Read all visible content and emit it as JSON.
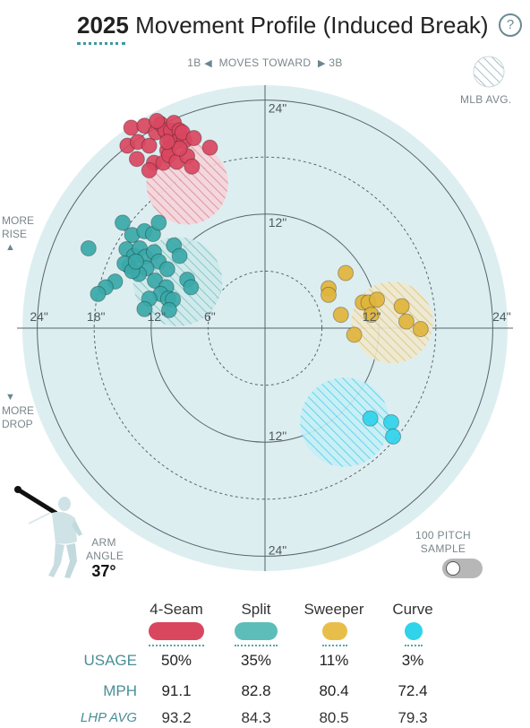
{
  "header": {
    "year": "2025",
    "title": "Movement Profile (Induced Break)",
    "help_icon": "?"
  },
  "direction": {
    "left": "1B",
    "middle": "MOVES TOWARD",
    "right": "3B"
  },
  "side_labels": {
    "rise_1": "MORE",
    "rise_2": "RISE",
    "drop_1": "MORE",
    "drop_2": "DROP"
  },
  "legend": {
    "mlb_avg": "MLB AVG."
  },
  "sample_toggle": {
    "label_1": "100 PITCH",
    "label_2": "SAMPLE",
    "on": false
  },
  "arm_angle": {
    "label_1": "ARM",
    "label_2": "ANGLE",
    "value": "37°"
  },
  "colors": {
    "background_disc": "#ddeef1",
    "axis": "#58646b",
    "four_seam": "#d9475f",
    "split": "#3aa8a8",
    "sweeper": "#e0b43c",
    "curve": "#2fd3ea"
  },
  "chart_data": {
    "type": "scatter",
    "xlim": [
      -24,
      24
    ],
    "ylim": [
      -24,
      24
    ],
    "rings": [
      6,
      12,
      18,
      24
    ],
    "tick_labels": {
      "left": [
        "24\"",
        "18\"",
        "12\"",
        "6\""
      ],
      "right": [
        "12\"",
        "24\""
      ],
      "top": [
        "24\"",
        "12\""
      ],
      "bottom": [
        "12\"",
        "24\""
      ]
    },
    "series": [
      {
        "name": "4-Seam",
        "color": "#d9475f",
        "avg": {
          "x": -8.2,
          "y": 15.2,
          "r": 4.3
        },
        "points": [
          [
            -14.1,
            21.1
          ],
          [
            -14.5,
            19.2
          ],
          [
            -13.4,
            19.6
          ],
          [
            -12.7,
            21.3
          ],
          [
            -12.2,
            19.2
          ],
          [
            -11.5,
            20.6
          ],
          [
            -11.0,
            21.5
          ],
          [
            -10.5,
            20.8
          ],
          [
            -10.0,
            19.8
          ],
          [
            -10.3,
            18.7
          ],
          [
            -11.7,
            17.4
          ],
          [
            -13.5,
            17.8
          ],
          [
            -12.2,
            16.6
          ],
          [
            -10.7,
            17.4
          ],
          [
            -9.9,
            20.8
          ],
          [
            -9.6,
            21.6
          ],
          [
            -9.0,
            20.8
          ],
          [
            -9.3,
            19.6
          ],
          [
            -10.1,
            18.2
          ],
          [
            -9.3,
            17.5
          ],
          [
            -8.2,
            18.1
          ],
          [
            -8.5,
            19.7
          ],
          [
            -8.7,
            20.6
          ],
          [
            -7.5,
            20.0
          ],
          [
            -9.0,
            18.9
          ],
          [
            -5.8,
            19.0
          ],
          [
            -7.7,
            17.0
          ],
          [
            -11.4,
            21.8
          ],
          [
            -10.3,
            19.6
          ]
        ]
      },
      {
        "name": "Split",
        "color": "#3aa8a8",
        "avg": {
          "x": -9.2,
          "y": 4.9,
          "r": 4.7
        },
        "points": [
          [
            -18.6,
            8.4
          ],
          [
            -15.0,
            11.1
          ],
          [
            -14.0,
            9.8
          ],
          [
            -14.6,
            8.3
          ],
          [
            -13.8,
            7.6
          ],
          [
            -14.3,
            6.5
          ],
          [
            -15.8,
            4.9
          ],
          [
            -16.8,
            4.3
          ],
          [
            -17.6,
            3.6
          ],
          [
            -14.8,
            6.8
          ],
          [
            -13.2,
            8.4
          ],
          [
            -12.7,
            10.2
          ],
          [
            -11.8,
            9.9
          ],
          [
            -11.2,
            11.1
          ],
          [
            -12.6,
            7.5
          ],
          [
            -11.7,
            8.0
          ],
          [
            -11.2,
            7.0
          ],
          [
            -12.5,
            6.3
          ],
          [
            -13.3,
            5.7
          ],
          [
            -10.3,
            6.2
          ],
          [
            -9.6,
            8.7
          ],
          [
            -9.0,
            7.6
          ],
          [
            -8.2,
            5.1
          ],
          [
            -11.6,
            5.0
          ],
          [
            -10.4,
            4.3
          ],
          [
            -11.0,
            3.6
          ],
          [
            -12.2,
            3.1
          ],
          [
            -12.7,
            2.0
          ],
          [
            -10.2,
            3.1
          ],
          [
            -9.7,
            3.0
          ],
          [
            -7.8,
            4.3
          ],
          [
            -10.1,
            1.9
          ],
          [
            -14.0,
            6.0
          ],
          [
            -13.6,
            7.0
          ]
        ]
      },
      {
        "name": "Sweeper",
        "color": "#e0b43c",
        "avg": {
          "x": 13.4,
          "y": 0.6,
          "r": 4.3
        },
        "points": [
          [
            8.5,
            5.8
          ],
          [
            6.7,
            4.2
          ],
          [
            6.7,
            3.5
          ],
          [
            10.3,
            2.7
          ],
          [
            10.9,
            2.7
          ],
          [
            11.8,
            3.0
          ],
          [
            14.4,
            2.3
          ],
          [
            8.0,
            1.4
          ],
          [
            11.2,
            1.4
          ],
          [
            14.9,
            0.7
          ],
          [
            16.4,
            -0.1
          ],
          [
            9.4,
            -0.7
          ]
        ]
      },
      {
        "name": "Curve",
        "color": "#2fd3ea",
        "avg": {
          "x": 8.4,
          "y": -9.9,
          "r": 4.7
        },
        "points": [
          [
            11.1,
            -9.5
          ],
          [
            13.3,
            -9.9
          ],
          [
            13.5,
            -11.4
          ]
        ]
      }
    ]
  },
  "table": {
    "pitches": [
      {
        "name": "4-Seam",
        "color": "#d9475f",
        "usage": "50%",
        "mph": "91.1",
        "lhp_avg": "93.2"
      },
      {
        "name": "Split",
        "color": "#5dbdb8",
        "usage": "35%",
        "mph": "82.8",
        "lhp_avg": "84.3"
      },
      {
        "name": "Sweeper",
        "color": "#e8be4a",
        "usage": "11%",
        "mph": "80.4",
        "lhp_avg": "80.5"
      },
      {
        "name": "Curve",
        "color": "#2fd3ea",
        "usage": "3%",
        "mph": "72.4",
        "lhp_avg": "79.3"
      }
    ],
    "rows": {
      "usage": "USAGE",
      "mph": "MPH",
      "lhp_avg": "LHP AVG"
    }
  }
}
